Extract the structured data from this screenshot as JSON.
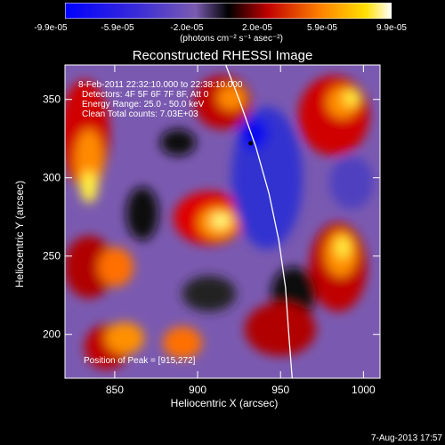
{
  "colorbar": {
    "ticks": [
      "-9.9e-05",
      "-5.9e-05",
      "-2.0e-05",
      "2.0e-05",
      "5.9e-05",
      "9.9e-05"
    ],
    "unit": "(photons cm⁻² s⁻¹ asec⁻²)"
  },
  "chart_data": {
    "type": "heatmap",
    "title": "Reconstructed RHESSI Image",
    "xlabel": "Heliocentric X (arcsec)",
    "ylabel": "Heliocentric Y (arcsec)",
    "xlim": [
      820,
      1010
    ],
    "ylim": [
      172,
      372
    ],
    "x_ticks": [
      850,
      900,
      950,
      1000
    ],
    "y_ticks": [
      200,
      250,
      300,
      350
    ],
    "colorbar_range": [
      -9.9e-05,
      9.9e-05
    ],
    "annotations": [
      "8-Feb-2011 22:32:10.000 to 22:38:10.000",
      "Detectors: 4F 5F 6F 7F 8F, Att 0",
      "Energy Range: 25.0 - 50.0 keV",
      "Clean     Total counts: 7.03E+03"
    ],
    "peak_label": "Position of Peak = [915,272]",
    "peak": [
      915,
      272
    ],
    "min_marker": [
      932,
      322
    ],
    "limb_curve": [
      [
        917,
        372
      ],
      [
        925,
        350
      ],
      [
        935,
        320
      ],
      [
        943,
        290
      ],
      [
        949,
        260
      ],
      [
        953,
        230
      ],
      [
        955,
        200
      ],
      [
        957,
        172
      ]
    ]
  },
  "footer": "7-Aug-2013 17:57"
}
